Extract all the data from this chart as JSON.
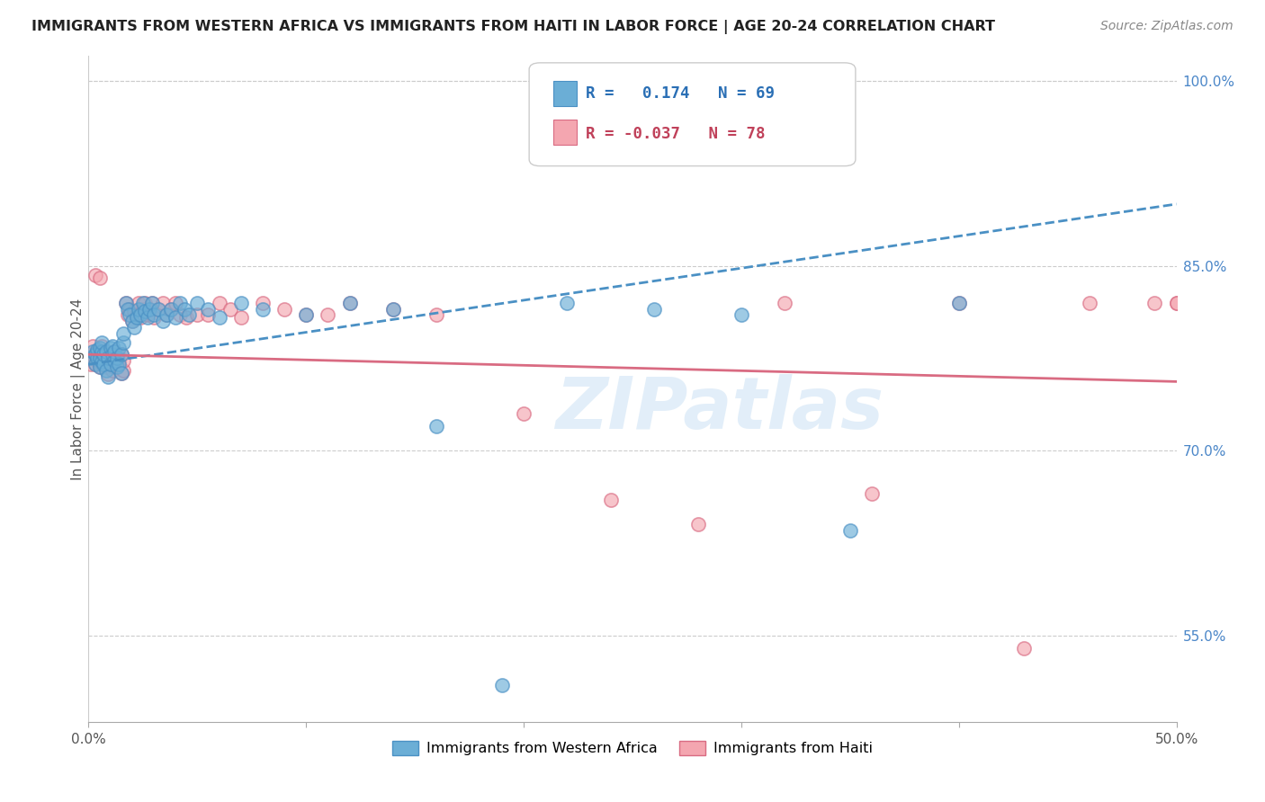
{
  "title": "IMMIGRANTS FROM WESTERN AFRICA VS IMMIGRANTS FROM HAITI IN LABOR FORCE | AGE 20-24 CORRELATION CHART",
  "source": "Source: ZipAtlas.com",
  "ylabel": "In Labor Force | Age 20-24",
  "legend_blue_r": "0.174",
  "legend_blue_n": "69",
  "legend_pink_r": "-0.037",
  "legend_pink_n": "78",
  "legend_label_blue": "Immigrants from Western Africa",
  "legend_label_pink": "Immigrants from Haiti",
  "blue_color": "#6baed6",
  "pink_color": "#f4a6b0",
  "blue_line_color": "#4a90c4",
  "pink_line_color": "#d96b82",
  "watermark_text": "ZIPatlas",
  "xlim": [
    0.0,
    0.5
  ],
  "ylim": [
    0.48,
    1.02
  ],
  "x_tick_positions": [
    0.0,
    0.1,
    0.2,
    0.3,
    0.4,
    0.5
  ],
  "x_tick_labels": [
    "0.0%",
    "",
    "",
    "",
    "",
    "50.0%"
  ],
  "y_tick_positions": [
    0.55,
    0.7,
    0.85,
    1.0
  ],
  "y_tick_labels": [
    "55.0%",
    "70.0%",
    "85.0%",
    "100.0%"
  ],
  "blue_trend": [
    0.0,
    0.5,
    0.77,
    0.9
  ],
  "pink_trend": [
    0.0,
    0.5,
    0.778,
    0.756
  ],
  "blue_scatter_x": [
    0.001,
    0.002,
    0.003,
    0.003,
    0.004,
    0.004,
    0.005,
    0.005,
    0.005,
    0.006,
    0.006,
    0.006,
    0.007,
    0.007,
    0.008,
    0.008,
    0.009,
    0.009,
    0.01,
    0.01,
    0.011,
    0.011,
    0.012,
    0.012,
    0.013,
    0.013,
    0.014,
    0.014,
    0.015,
    0.015,
    0.016,
    0.016,
    0.017,
    0.018,
    0.019,
    0.02,
    0.021,
    0.022,
    0.023,
    0.024,
    0.025,
    0.026,
    0.027,
    0.028,
    0.029,
    0.03,
    0.032,
    0.034,
    0.036,
    0.038,
    0.04,
    0.042,
    0.044,
    0.046,
    0.05,
    0.055,
    0.06,
    0.07,
    0.08,
    0.1,
    0.12,
    0.14,
    0.16,
    0.19,
    0.22,
    0.26,
    0.3,
    0.35,
    0.4
  ],
  "blue_scatter_y": [
    0.775,
    0.78,
    0.77,
    0.778,
    0.775,
    0.782,
    0.768,
    0.775,
    0.783,
    0.772,
    0.78,
    0.788,
    0.77,
    0.778,
    0.765,
    0.78,
    0.76,
    0.775,
    0.77,
    0.783,
    0.778,
    0.785,
    0.773,
    0.78,
    0.768,
    0.775,
    0.77,
    0.783,
    0.763,
    0.778,
    0.788,
    0.795,
    0.82,
    0.815,
    0.81,
    0.805,
    0.8,
    0.808,
    0.815,
    0.81,
    0.82,
    0.813,
    0.808,
    0.815,
    0.82,
    0.81,
    0.815,
    0.805,
    0.81,
    0.815,
    0.808,
    0.82,
    0.815,
    0.81,
    0.82,
    0.815,
    0.808,
    0.82,
    0.815,
    0.81,
    0.82,
    0.815,
    0.72,
    0.51,
    0.82,
    0.815,
    0.81,
    0.635,
    0.82
  ],
  "pink_scatter_x": [
    0.001,
    0.001,
    0.002,
    0.002,
    0.003,
    0.003,
    0.003,
    0.004,
    0.004,
    0.005,
    0.005,
    0.005,
    0.006,
    0.006,
    0.006,
    0.007,
    0.007,
    0.008,
    0.008,
    0.009,
    0.009,
    0.01,
    0.01,
    0.011,
    0.011,
    0.012,
    0.012,
    0.013,
    0.013,
    0.014,
    0.015,
    0.015,
    0.016,
    0.016,
    0.017,
    0.018,
    0.019,
    0.02,
    0.021,
    0.022,
    0.023,
    0.024,
    0.025,
    0.026,
    0.027,
    0.028,
    0.029,
    0.03,
    0.032,
    0.034,
    0.036,
    0.038,
    0.04,
    0.042,
    0.045,
    0.05,
    0.055,
    0.06,
    0.065,
    0.07,
    0.08,
    0.09,
    0.1,
    0.11,
    0.12,
    0.14,
    0.16,
    0.2,
    0.24,
    0.28,
    0.32,
    0.36,
    0.4,
    0.43,
    0.46,
    0.49,
    0.5,
    0.5
  ],
  "pink_scatter_y": [
    0.77,
    0.778,
    0.775,
    0.785,
    0.77,
    0.778,
    0.842,
    0.773,
    0.78,
    0.768,
    0.775,
    0.84,
    0.77,
    0.778,
    0.785,
    0.772,
    0.779,
    0.768,
    0.775,
    0.762,
    0.778,
    0.77,
    0.778,
    0.765,
    0.773,
    0.768,
    0.775,
    0.77,
    0.778,
    0.773,
    0.763,
    0.778,
    0.765,
    0.773,
    0.82,
    0.81,
    0.815,
    0.805,
    0.813,
    0.81,
    0.82,
    0.808,
    0.815,
    0.82,
    0.81,
    0.815,
    0.82,
    0.808,
    0.815,
    0.82,
    0.81,
    0.815,
    0.82,
    0.81,
    0.808,
    0.81,
    0.81,
    0.82,
    0.815,
    0.808,
    0.82,
    0.815,
    0.81,
    0.81,
    0.82,
    0.815,
    0.81,
    0.73,
    0.66,
    0.64,
    0.82,
    0.665,
    0.82,
    0.54,
    0.82,
    0.82,
    0.82,
    0.82
  ]
}
